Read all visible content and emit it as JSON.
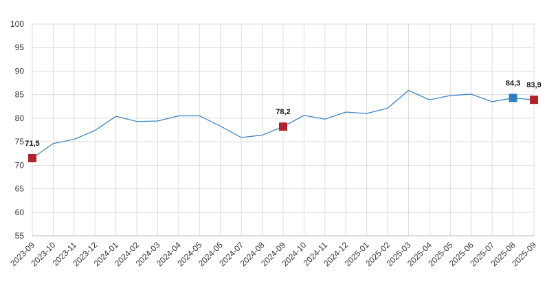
{
  "chart_data": {
    "type": "line",
    "title": "",
    "xlabel": "",
    "ylabel": "",
    "ylim": [
      55,
      100
    ],
    "yticks": [
      55,
      60,
      65,
      70,
      75,
      80,
      85,
      90,
      95,
      100
    ],
    "grid": true,
    "legend": "none",
    "categories": [
      "2023-09",
      "2023-10",
      "2023-11",
      "2023-12",
      "2024-01",
      "2024-02",
      "2024-03",
      "2024-04",
      "2024-05",
      "2024-06",
      "2024-07",
      "2024-08",
      "2024-09",
      "2024-10",
      "2024-11",
      "2024-12",
      "2025-01",
      "2025-02",
      "2025-03",
      "2025-04",
      "2025-05",
      "2025-06",
      "2025-07",
      "2025-08",
      "2025-09"
    ],
    "series": [
      {
        "color": "#2f7fc1",
        "values": [
          71.5,
          74.6,
          75.5,
          77.4,
          80.4,
          79.3,
          79.4,
          80.5,
          80.5,
          78.3,
          75.9,
          76.4,
          78.2,
          80.6,
          79.8,
          81.3,
          81.0,
          82.1,
          85.9,
          83.9,
          84.8,
          85.1,
          83.5,
          84.3,
          83.9
        ]
      }
    ],
    "markers": [
      {
        "index": 0,
        "label": "71,5",
        "color": "#b0232a"
      },
      {
        "index": 12,
        "label": "78,2",
        "color": "#b0232a"
      },
      {
        "index": 23,
        "label": "84,3",
        "color": "#2f7fc1"
      },
      {
        "index": 24,
        "label": "83,9",
        "color": "#b0232a"
      }
    ]
  }
}
